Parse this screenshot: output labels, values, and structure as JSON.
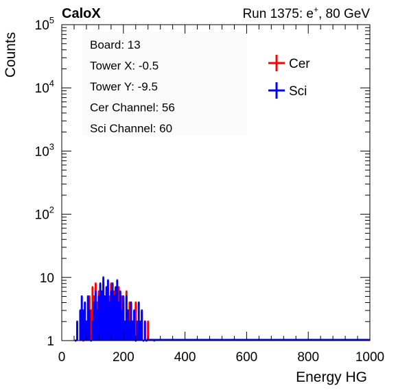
{
  "header": {
    "left_title": "CaloX",
    "right_title_prefix": "Run 1375: e",
    "right_title_sup": "+",
    "right_title_suffix": ", 80 GeV"
  },
  "info_box": {
    "lines": [
      "Board: 13",
      "Tower X: -0.5",
      "Tower Y: -9.5",
      "Cer Channel: 56",
      "Sci Channel: 60"
    ]
  },
  "chart_data": {
    "type": "histogram",
    "xlabel": "Energy HG",
    "ylabel": "Counts",
    "xlim": [
      0,
      1000
    ],
    "ylim": [
      1,
      100000
    ],
    "y_scale": "log",
    "x_ticks": [
      "0",
      "200",
      "400",
      "600",
      "800",
      "1000"
    ],
    "y_ticks": [
      {
        "value": 1,
        "label": "1"
      },
      {
        "value": 10,
        "label": "10"
      },
      {
        "value": 100,
        "base": "10",
        "exp": "2"
      },
      {
        "value": 1000,
        "base": "10",
        "exp": "3"
      },
      {
        "value": 10000,
        "base": "10",
        "exp": "4"
      },
      {
        "value": 100000,
        "base": "10",
        "exp": "5"
      }
    ],
    "legend_position": "top-right",
    "series": [
      {
        "name": "Cer",
        "color": "#ff0000",
        "points": [
          [
            70,
            1
          ],
          [
            80,
            2
          ],
          [
            90,
            5
          ],
          [
            95,
            3
          ],
          [
            100,
            7
          ],
          [
            105,
            5
          ],
          [
            110,
            8
          ],
          [
            115,
            4
          ],
          [
            120,
            6
          ],
          [
            125,
            8
          ],
          [
            130,
            5
          ],
          [
            135,
            8
          ],
          [
            140,
            4
          ],
          [
            145,
            6
          ],
          [
            150,
            7
          ],
          [
            155,
            5
          ],
          [
            160,
            8
          ],
          [
            165,
            3
          ],
          [
            170,
            6
          ],
          [
            175,
            2
          ],
          [
            180,
            5
          ],
          [
            185,
            7
          ],
          [
            190,
            3
          ],
          [
            195,
            5
          ],
          [
            200,
            4
          ],
          [
            205,
            2
          ],
          [
            210,
            6
          ],
          [
            215,
            3
          ],
          [
            220,
            4
          ],
          [
            230,
            2
          ],
          [
            240,
            4
          ],
          [
            250,
            2
          ],
          [
            260,
            3
          ],
          [
            270,
            2
          ],
          [
            280,
            2
          ],
          [
            300,
            1
          ]
        ]
      },
      {
        "name": "Sci",
        "color": "#0000ff",
        "points": [
          [
            45,
            1
          ],
          [
            50,
            2
          ],
          [
            60,
            3
          ],
          [
            65,
            5
          ],
          [
            70,
            3
          ],
          [
            75,
            4
          ],
          [
            80,
            2
          ],
          [
            85,
            5
          ],
          [
            90,
            3
          ],
          [
            95,
            1
          ],
          [
            100,
            2
          ],
          [
            105,
            4
          ],
          [
            110,
            6
          ],
          [
            115,
            3
          ],
          [
            120,
            5
          ],
          [
            125,
            8
          ],
          [
            130,
            6
          ],
          [
            135,
            10
          ],
          [
            140,
            5
          ],
          [
            145,
            7
          ],
          [
            150,
            9
          ],
          [
            155,
            4
          ],
          [
            160,
            6
          ],
          [
            165,
            8
          ],
          [
            170,
            5
          ],
          [
            175,
            7
          ],
          [
            180,
            9
          ],
          [
            185,
            4
          ],
          [
            190,
            6
          ],
          [
            195,
            3
          ],
          [
            200,
            5
          ],
          [
            205,
            2
          ],
          [
            210,
            5
          ],
          [
            215,
            3
          ],
          [
            220,
            2
          ],
          [
            225,
            4
          ],
          [
            230,
            2
          ],
          [
            235,
            3
          ],
          [
            240,
            1
          ],
          [
            245,
            2
          ],
          [
            250,
            4
          ],
          [
            255,
            2
          ],
          [
            260,
            3
          ],
          [
            265,
            1
          ],
          [
            270,
            2
          ],
          [
            275,
            1
          ]
        ]
      }
    ]
  }
}
